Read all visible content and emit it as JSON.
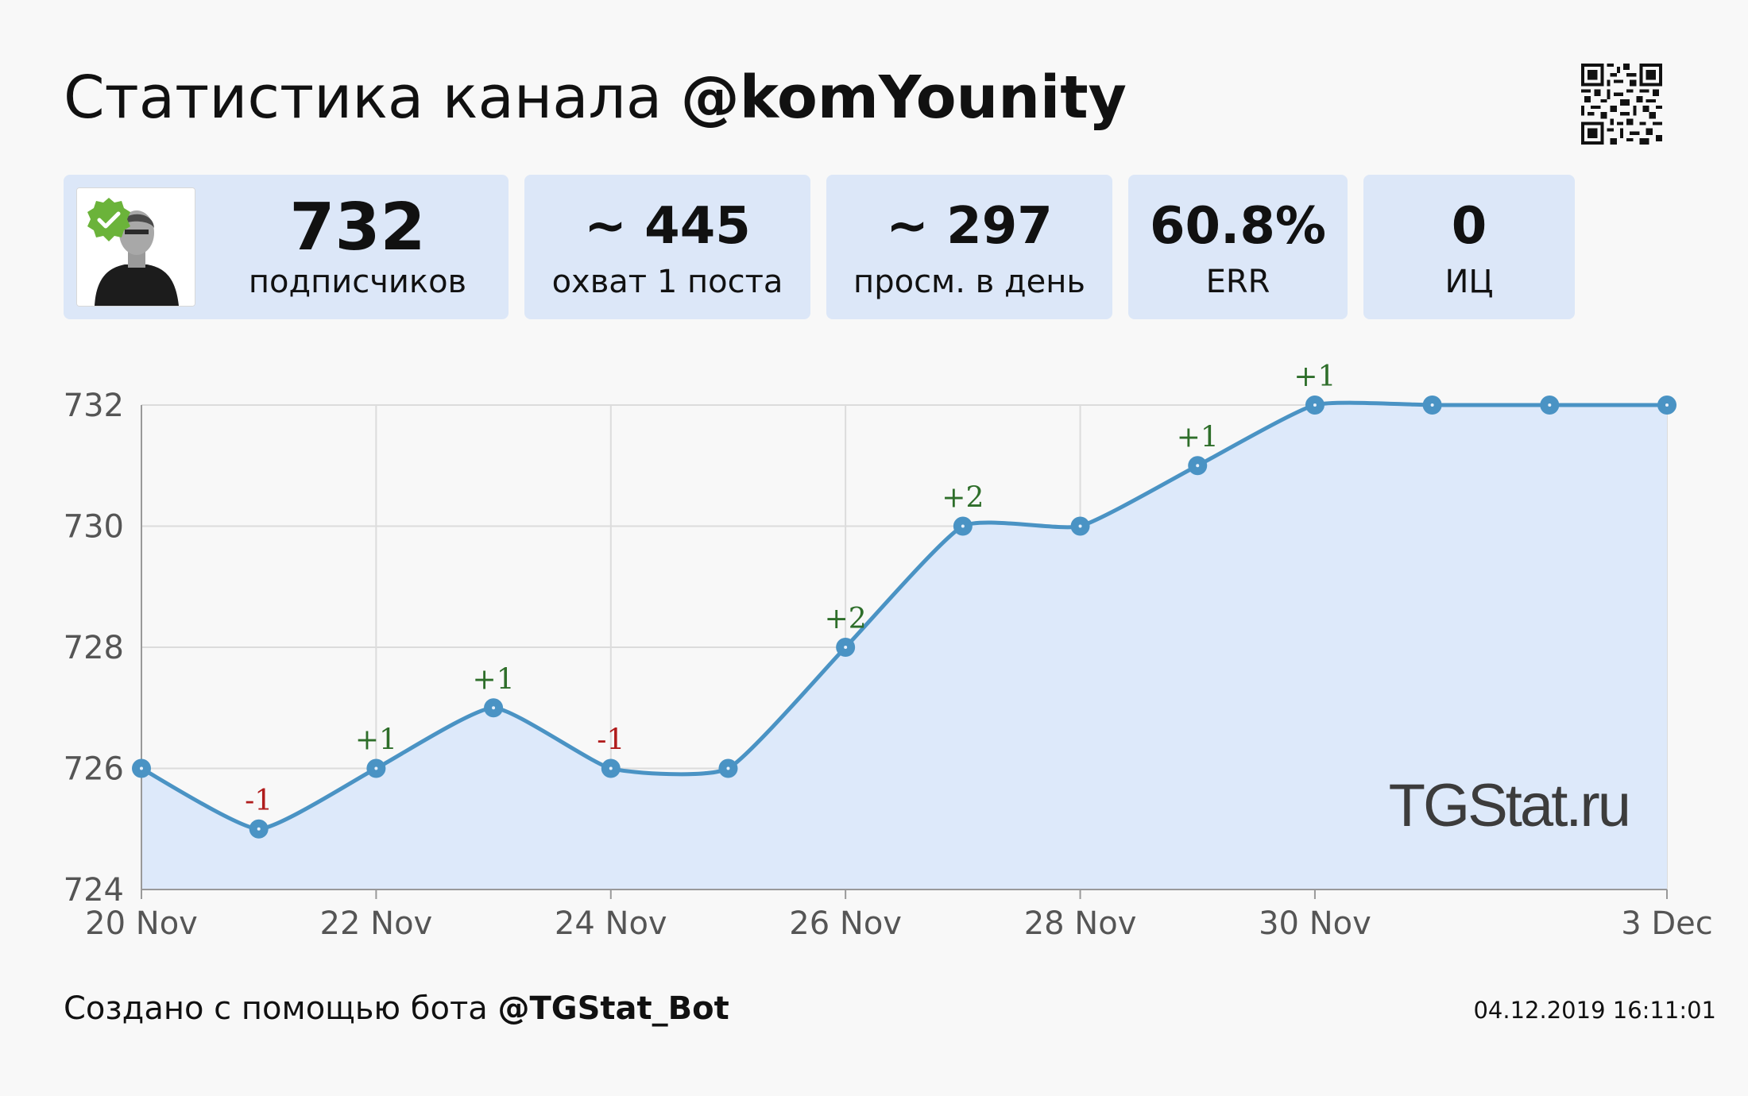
{
  "header": {
    "title_prefix": "Статистика канала",
    "channel": "@komYounity"
  },
  "stats": [
    {
      "value": "732",
      "label": "подписчиков"
    },
    {
      "value": "~ 445",
      "label": "охват 1 поста"
    },
    {
      "value": "~ 297",
      "label": "просм. в день"
    },
    {
      "value": "60.8%",
      "label": "ERR"
    },
    {
      "value": "0",
      "label": "ИЦ"
    }
  ],
  "watermark": "TGStat.ru",
  "footer": {
    "prefix": "Создано с помощью бота",
    "bot": "@TGStat_Bot",
    "timestamp": "04.12.2019 16:11:01"
  },
  "colors": {
    "line": "#4a93c4",
    "area": "#dde9fa",
    "card": "#dce7f8",
    "positive": "#2e6e2a",
    "negative": "#b01c1c"
  },
  "chart_data": {
    "type": "area",
    "x": [
      "20 Nov",
      "21 Nov",
      "22 Nov",
      "23 Nov",
      "24 Nov",
      "25 Nov",
      "26 Nov",
      "27 Nov",
      "28 Nov",
      "29 Nov",
      "30 Nov",
      "1 Dec",
      "2 Dec",
      "3 Dec"
    ],
    "series": [
      {
        "values": [
          726,
          725,
          726,
          727,
          726,
          726,
          728,
          730,
          730,
          731,
          732,
          732,
          732,
          732
        ]
      }
    ],
    "point_labels": [
      "",
      "-1",
      "+1",
      "+1",
      "-1",
      "",
      "+2",
      "+2",
      "",
      "+1",
      "+1",
      "",
      "",
      ""
    ],
    "x_tick_labels": [
      "20 Nov",
      "22 Nov",
      "24 Nov",
      "26 Nov",
      "28 Nov",
      "30 Nov",
      "3 Dec"
    ],
    "y_ticks": [
      724,
      726,
      728,
      730,
      732
    ],
    "ylim": [
      724,
      732
    ],
    "grid": true
  }
}
